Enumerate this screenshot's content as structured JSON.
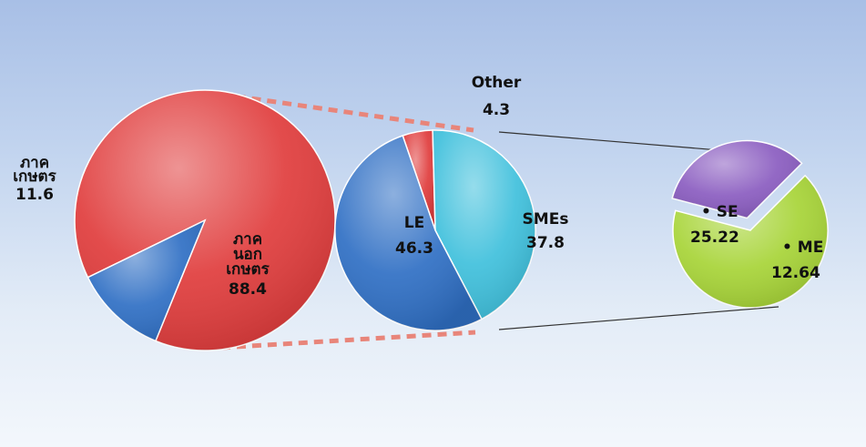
{
  "chart_data": [
    {
      "type": "pie",
      "slices": [
        {
          "label": "ภาค\nนอก\nเกษตร",
          "value": 88.4,
          "color": "#e03c3c"
        },
        {
          "label": "ภาค\nเกษตร",
          "value": 11.6,
          "color": "#2f6fc4"
        }
      ]
    },
    {
      "type": "pie",
      "slices": [
        {
          "label": "Other",
          "value": 4.3,
          "color": "#e03c3c"
        },
        {
          "label": "SMEs",
          "value": 37.8,
          "color": "#3fc0dc"
        },
        {
          "label": "LE",
          "value": 46.3,
          "color": "#2f6fc4"
        }
      ]
    },
    {
      "type": "pie",
      "slices": [
        {
          "label": "SE",
          "value": 25.22,
          "color": "#a7d437"
        },
        {
          "label": "ME",
          "value": 12.64,
          "color": "#8a5cc0"
        }
      ]
    }
  ]
}
